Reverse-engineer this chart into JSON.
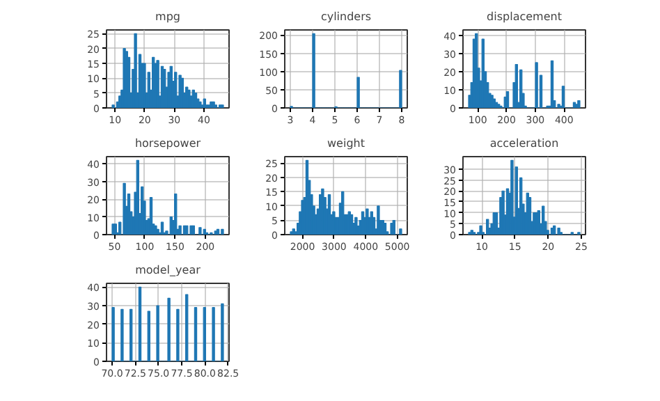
{
  "chart_data": [
    {
      "type": "histogram",
      "title": "mpg",
      "color": "#1f77b4",
      "grid": true,
      "bins": [
        9,
        9.752,
        10.504,
        11.256,
        12.008,
        12.76,
        13.512,
        14.264,
        15.016,
        15.768,
        16.52,
        17.272,
        18.024,
        18.776,
        19.528,
        20.28,
        21.032,
        21.784,
        22.536,
        23.288,
        24.04,
        24.792,
        25.544,
        26.296,
        27.048,
        27.8,
        28.552,
        29.304,
        30.056,
        30.808,
        31.56,
        32.312,
        33.064,
        33.816,
        34.568,
        35.32,
        36.072,
        36.824,
        37.576,
        38.328,
        39.08,
        39.832,
        40.584,
        41.336,
        42.088,
        42.84,
        43.592,
        44.344,
        45.096,
        45.848,
        46.6
      ],
      "values": [
        1,
        0,
        2,
        4,
        6,
        20,
        19,
        17,
        5,
        13,
        25,
        5,
        18,
        15,
        15,
        5,
        12,
        6,
        17,
        15,
        16,
        4,
        14,
        13,
        7,
        12,
        14,
        9,
        12,
        4,
        11,
        10,
        5,
        7,
        6,
        4,
        6,
        5,
        3,
        2,
        1,
        3,
        1,
        1,
        2,
        2,
        1,
        0,
        1,
        1
      ],
      "xlim": [
        7.12,
        48.48
      ],
      "xticks": [
        10,
        20,
        30,
        40
      ],
      "ylim": [
        0,
        26.25
      ],
      "yticks": [
        0,
        5,
        10,
        15,
        20,
        25
      ]
    },
    {
      "type": "histogram",
      "title": "cylinders",
      "color": "#1f77b4",
      "grid": true,
      "bins": [
        3,
        3.1,
        3.2,
        3.3,
        3.4,
        3.5,
        3.6,
        3.7,
        3.8,
        3.9,
        4,
        4.1,
        4.2,
        4.3,
        4.4,
        4.5,
        4.6,
        4.7,
        4.8,
        4.9,
        5,
        5.1,
        5.2,
        5.3,
        5.4,
        5.5,
        5.6,
        5.7,
        5.8,
        5.9,
        6,
        6.1,
        6.2,
        6.3,
        6.4,
        6.5,
        6.6,
        6.7,
        6.8,
        6.9,
        7,
        7.1,
        7.2,
        7.3,
        7.4,
        7.5,
        7.6,
        7.7,
        7.8,
        7.9,
        8
      ],
      "values": [
        4,
        0,
        0,
        0,
        0,
        0,
        0,
        0,
        0,
        0,
        204,
        0,
        0,
        0,
        0,
        0,
        0,
        0,
        0,
        0,
        3,
        0,
        0,
        0,
        0,
        0,
        0,
        0,
        0,
        0,
        84,
        0,
        0,
        0,
        0,
        0,
        0,
        0,
        0,
        0,
        0,
        0,
        0,
        0,
        0,
        0,
        0,
        0,
        0,
        103
      ],
      "xlim": [
        2.75,
        8.25
      ],
      "xticks": [
        3,
        4,
        5,
        6,
        7,
        8
      ],
      "ylim": [
        0,
        214.2
      ],
      "yticks": [
        0,
        50,
        100,
        150,
        200
      ]
    },
    {
      "type": "histogram",
      "title": "displacement",
      "color": "#1f77b4",
      "grid": true,
      "bins": [
        68,
        75.74,
        83.48,
        91.22,
        98.96,
        106.7,
        114.44,
        122.18,
        129.92,
        137.66,
        145.4,
        153.14,
        160.88,
        168.62,
        176.36,
        184.1,
        191.84,
        199.58,
        207.32,
        215.06,
        222.8,
        230.54,
        238.28,
        246.02,
        253.76,
        261.5,
        269.24,
        276.98,
        284.72,
        292.46,
        300.2,
        307.94,
        315.68,
        323.42,
        331.16,
        338.9,
        346.64,
        354.38,
        362.12,
        369.86,
        377.6,
        385.34,
        393.08,
        400.82,
        408.56,
        416.3,
        424.04,
        431.78,
        439.52,
        447.26,
        455
      ],
      "values": [
        7,
        14,
        38,
        41,
        22,
        15,
        38,
        20,
        14,
        8,
        7,
        5,
        3,
        2,
        1,
        0,
        6,
        9,
        0,
        0,
        14,
        24,
        3,
        21,
        8,
        1,
        0,
        0,
        0,
        0,
        25,
        0,
        18,
        0,
        0,
        1,
        1,
        26,
        4,
        0,
        2,
        1,
        12,
        0,
        0,
        0,
        0,
        3,
        2,
        4
      ],
      "xlim": [
        48.65,
        474.35
      ],
      "xticks": [
        100,
        200,
        300,
        400
      ],
      "ylim": [
        0,
        43.05
      ],
      "yticks": [
        0,
        10,
        20,
        30,
        40
      ]
    },
    {
      "type": "histogram",
      "title": "horsepower",
      "color": "#1f77b4",
      "grid": true,
      "bins": [
        46,
        49.68,
        53.36,
        57.04,
        60.72,
        64.4,
        68.08,
        71.76,
        75.44,
        79.12,
        82.8,
        86.48,
        90.16,
        93.84,
        97.52,
        101.2,
        104.88,
        108.56,
        112.24,
        115.92,
        119.6,
        123.28,
        126.96,
        130.64,
        134.32,
        138,
        141.68,
        145.36,
        149.04,
        152.72,
        156.4,
        160.08,
        163.76,
        167.44,
        171.12,
        174.8,
        178.48,
        182.16,
        185.84,
        189.52,
        193.2,
        196.88,
        200.56,
        204.24,
        207.92,
        211.6,
        215.28,
        218.96,
        222.64,
        226.32,
        230
      ],
      "values": [
        6,
        6,
        1,
        7,
        0,
        29,
        16,
        23,
        13,
        10,
        24,
        42,
        12,
        27,
        19,
        8,
        9,
        21,
        6,
        5,
        3,
        1,
        7,
        1,
        2,
        0,
        10,
        8,
        23,
        3,
        5,
        0,
        5,
        5,
        0,
        5,
        5,
        0,
        0,
        4,
        0,
        3,
        1,
        0,
        1,
        0,
        2,
        3,
        0,
        3
      ],
      "xlim": [
        36.8,
        239.2
      ],
      "xticks": [
        50,
        100,
        150,
        200
      ],
      "ylim": [
        0,
        44.1
      ],
      "yticks": [
        0,
        10,
        20,
        30,
        40
      ]
    },
    {
      "type": "histogram",
      "title": "weight",
      "color": "#1f77b4",
      "grid": true,
      "bins": [
        1613,
        1683.54,
        1754.08,
        1824.62,
        1895.16,
        1965.7,
        2036.24,
        2106.78,
        2177.32,
        2247.86,
        2318.4,
        2388.94,
        2459.48,
        2530.02,
        2600.56,
        2671.1,
        2741.64,
        2812.18,
        2882.72,
        2953.26,
        3023.8,
        3094.34,
        3164.88,
        3235.42,
        3305.96,
        3376.5,
        3447.04,
        3517.58,
        3588.12,
        3658.66,
        3729.2,
        3799.74,
        3870.28,
        3940.82,
        4011.36,
        4081.9,
        4152.44,
        4222.98,
        4293.52,
        4364.06,
        4434.6,
        4505.14,
        4575.68,
        4646.22,
        4716.76,
        4787.3,
        4857.84,
        4928.38,
        4998.92,
        5069.46,
        5140
      ],
      "values": [
        1,
        2,
        1,
        4,
        8,
        12,
        13,
        26,
        19,
        14,
        10,
        7,
        9,
        14,
        16,
        13,
        9,
        14,
        7,
        8,
        6,
        6,
        11,
        15,
        7,
        7,
        8,
        7,
        4,
        6,
        3,
        5,
        8,
        6,
        9,
        6,
        8,
        6,
        2,
        10,
        5,
        5,
        4,
        1,
        0,
        4,
        5,
        0,
        0,
        2
      ],
      "xlim": [
        1436.65,
        5316.35
      ],
      "xticks": [
        2000,
        3000,
        4000,
        5000
      ],
      "ylim": [
        0,
        27.3
      ],
      "yticks": [
        0,
        5,
        10,
        15,
        20,
        25
      ]
    },
    {
      "type": "histogram",
      "title": "acceleration",
      "color": "#1f77b4",
      "grid": true,
      "bins": [
        8,
        8.336,
        8.672,
        9.008,
        9.344,
        9.68,
        10.016,
        10.352,
        10.688,
        11.024,
        11.36,
        11.696,
        12.032,
        12.368,
        12.704,
        13.04,
        13.376,
        13.712,
        14.048,
        14.384,
        14.72,
        15.056,
        15.392,
        15.728,
        16.064,
        16.4,
        16.736,
        17.072,
        17.408,
        17.744,
        18.08,
        18.416,
        18.752,
        19.088,
        19.424,
        19.76,
        20.096,
        20.432,
        20.768,
        21.104,
        21.44,
        21.776,
        22.112,
        22.448,
        22.784,
        23.12,
        23.456,
        23.792,
        24.128,
        24.464,
        24.8
      ],
      "values": [
        1,
        2,
        1,
        0,
        1,
        4,
        1,
        0,
        7,
        3,
        5,
        10,
        10,
        3,
        17,
        20,
        9,
        21,
        19,
        34,
        8,
        31,
        12,
        26,
        14,
        10,
        19,
        17,
        6,
        10,
        10,
        11,
        5,
        13,
        6,
        2,
        0,
        3,
        4,
        0,
        3,
        1,
        0,
        0,
        0,
        0,
        1,
        0,
        0,
        1
      ],
      "xlim": [
        7.16,
        25.64
      ],
      "xticks": [
        10,
        15,
        20,
        25
      ],
      "ylim": [
        0,
        35.7
      ],
      "yticks": [
        0,
        5,
        10,
        15,
        20,
        25,
        30
      ]
    },
    {
      "type": "histogram",
      "title": "model_year",
      "color": "#1f77b4",
      "grid": true,
      "bins": [
        70,
        70.24,
        70.48,
        70.72,
        70.96,
        71.2,
        71.44,
        71.68,
        71.92,
        72.16,
        72.4,
        72.64,
        72.88,
        73.12,
        73.36,
        73.6,
        73.84,
        74.08,
        74.32,
        74.56,
        74.8,
        75.04,
        75.28,
        75.52,
        75.76,
        76,
        76.24,
        76.48,
        76.72,
        76.96,
        77.2,
        77.44,
        77.68,
        77.92,
        78.16,
        78.4,
        78.64,
        78.88,
        79.12,
        79.36,
        79.6,
        79.84,
        80.08,
        80.32,
        80.56,
        80.8,
        81.04,
        81.28,
        81.52,
        81.76,
        82
      ],
      "values": [
        29,
        0,
        0,
        0,
        28,
        0,
        0,
        0,
        28,
        0,
        0,
        0,
        40,
        0,
        0,
        0,
        27,
        0,
        0,
        0,
        30,
        0,
        0,
        0,
        0,
        34,
        0,
        0,
        0,
        28,
        0,
        0,
        0,
        36,
        0,
        0,
        0,
        29,
        0,
        0,
        0,
        29,
        0,
        0,
        0,
        29,
        0,
        0,
        0,
        31
      ],
      "xlim": [
        69.4,
        82.6
      ],
      "xticks": [
        {
          "value": 70,
          "label": "70.0"
        },
        {
          "value": 72.5,
          "label": "72.5"
        },
        {
          "value": 75,
          "label": "75.0"
        },
        {
          "value": 77.5,
          "label": "77.5"
        },
        {
          "value": 80,
          "label": "80.0"
        },
        {
          "value": 82.5,
          "label": "82.5"
        }
      ],
      "ylim": [
        0,
        42
      ],
      "yticks": [
        0,
        10,
        20,
        30,
        40
      ]
    }
  ]
}
